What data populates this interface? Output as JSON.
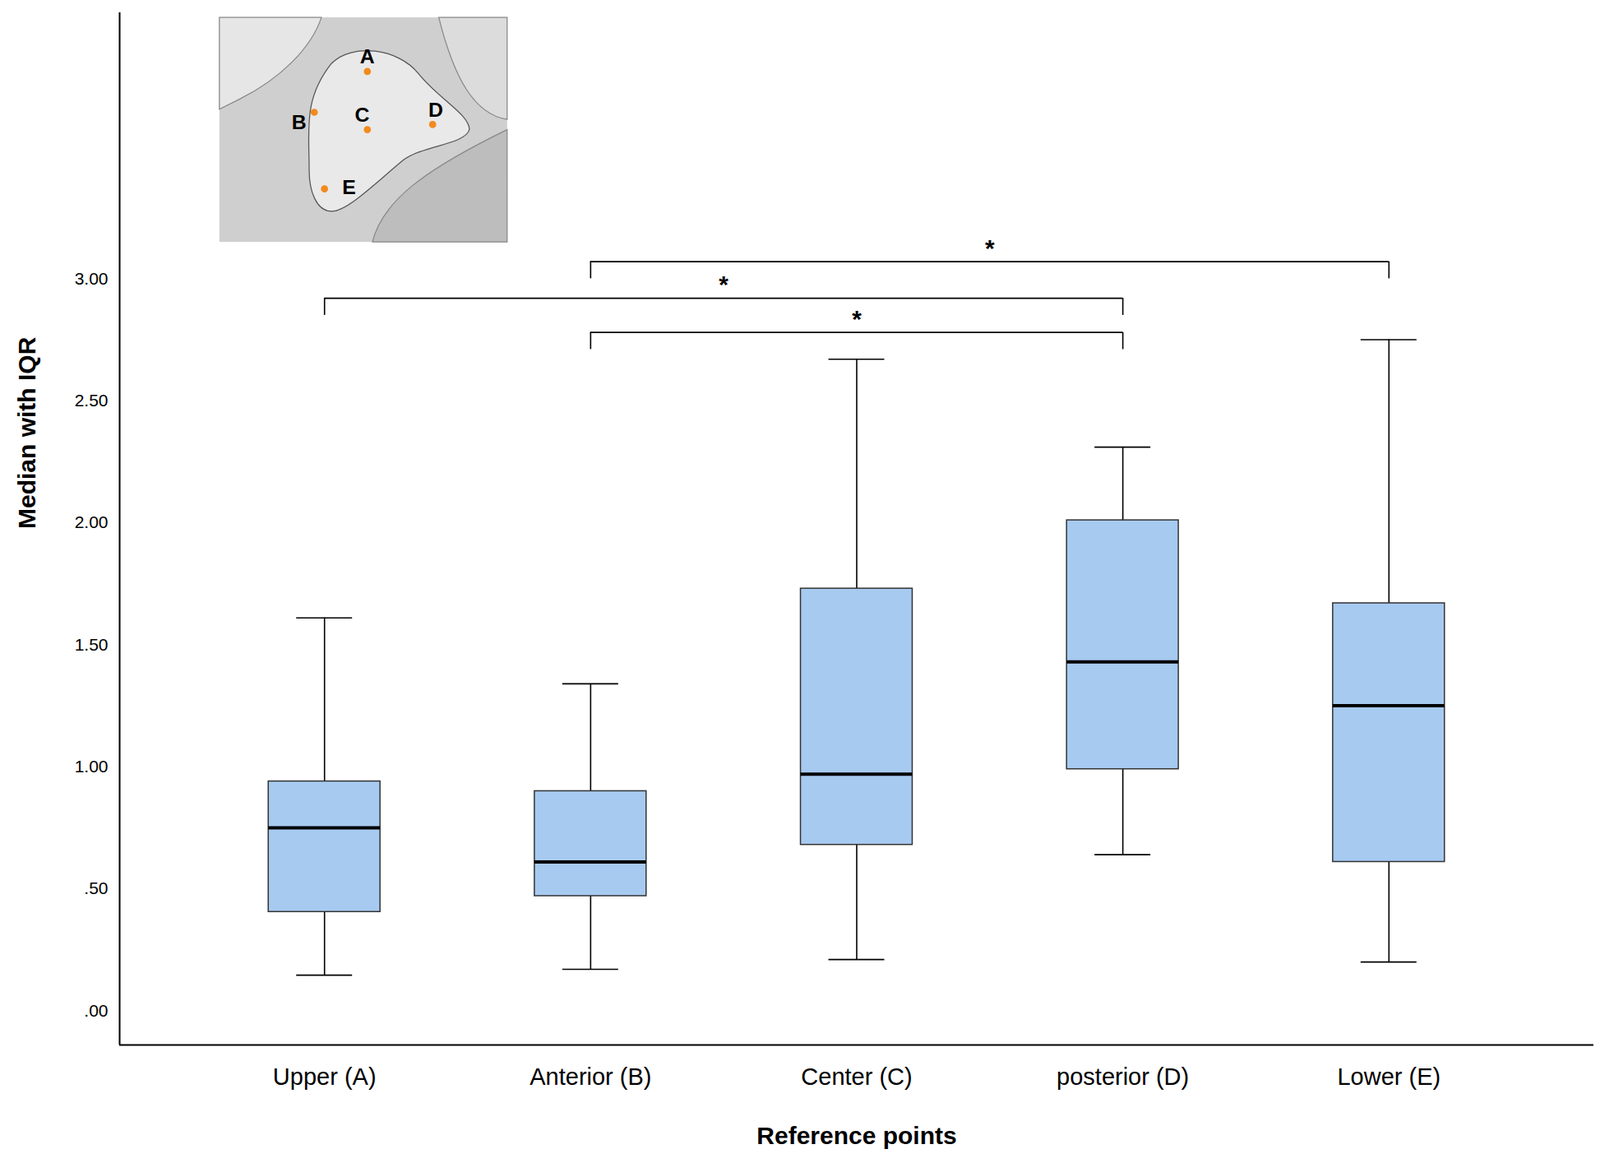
{
  "chart_data": {
    "type": "box",
    "x_label": "Reference points",
    "y_label": "Median with IQR",
    "categories": [
      "Upper (A)",
      "Anterior (B)",
      "Center (C)",
      "posterior (D)",
      "Lower (E)"
    ],
    "whisker_low": [
      0.146,
      0.17,
      0.21,
      0.64,
      0.2
    ],
    "q1": [
      0.405,
      0.47,
      0.68,
      0.99,
      0.61
    ],
    "median": [
      0.75,
      0.61,
      0.97,
      1.43,
      1.25
    ],
    "q3": [
      0.94,
      0.9,
      1.73,
      2.01,
      1.67
    ],
    "whisker_high": [
      1.61,
      1.34,
      2.67,
      2.31,
      2.75
    ],
    "color": "#a7caf0",
    "ylim": [
      -0.14,
      4.09
    ],
    "yticks": [
      {
        "value": 0,
        "label": ".00"
      },
      {
        "value": 0.5,
        "label": ".50"
      },
      {
        "value": 1,
        "label": "1.00"
      },
      {
        "value": 1.5,
        "label": "1.50"
      },
      {
        "value": 2,
        "label": "2.00"
      },
      {
        "value": 2.5,
        "label": "2.50"
      },
      {
        "value": 3,
        "label": "3.00"
      }
    ],
    "grid": false,
    "comparisons": [
      {
        "from": "Anterior (B)",
        "to": "Lower (E)",
        "value": 3.07,
        "label": "*"
      },
      {
        "from": "Upper (A)",
        "to": "posterior (D)",
        "value": 2.92,
        "label": "*"
      },
      {
        "from": "Anterior (B)",
        "to": "posterior (D)",
        "value": 2.78,
        "label": "*"
      }
    ],
    "inset_labels": [
      "A",
      "B",
      "C",
      "D",
      "E"
    ]
  }
}
